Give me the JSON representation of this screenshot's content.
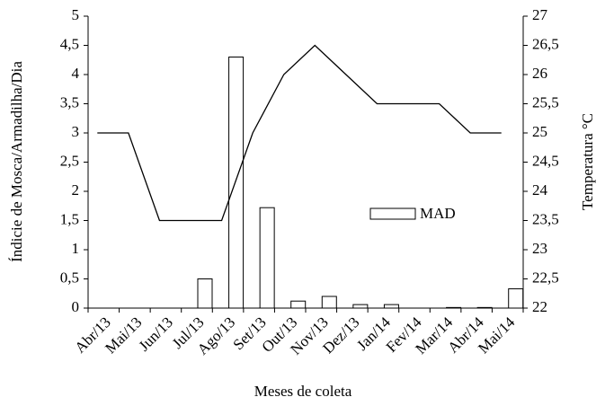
{
  "chart_data": {
    "type": "bar_line",
    "x_label": "Meses de coleta",
    "y_label": "Índicie de Mosca/Armadilha/Dia",
    "y2_label": "Temperatura °C",
    "categories": [
      "Abr/13",
      "Mai/13",
      "Jun/13",
      "Jul/13",
      "Ago/13",
      "Set/13",
      "Out/13",
      "Nov/13",
      "Dez/13",
      "Jan/14",
      "Fev/14",
      "Mar/14",
      "Abr/14",
      "Mai/14"
    ],
    "series": [
      {
        "name": "MAD",
        "type": "bar",
        "color": "#ffffff",
        "values": [
          0,
          0,
          0,
          0.5,
          4.3,
          1.72,
          0.12,
          0.2,
          0.06,
          0.06,
          0,
          0.01,
          0.01,
          0.33
        ]
      },
      {
        "type": "line",
        "axis": "y2",
        "color": "#000000",
        "values": [
          25,
          25,
          23.5,
          23.5,
          23.5,
          25,
          26,
          26.5,
          26,
          25.5,
          25.5,
          25.5,
          25,
          25
        ]
      }
    ],
    "ylim": [
      0,
      5
    ],
    "yticks": [
      0,
      {
        "value": 0.5,
        "label": "0,5"
      },
      1,
      {
        "value": 1.5,
        "label": "1,5"
      },
      2,
      {
        "value": 2.5,
        "label": "2,5"
      },
      3,
      {
        "value": 3.5,
        "label": "3,5"
      },
      4,
      {
        "value": 4.5,
        "label": "4,5"
      },
      5
    ],
    "y2lim": [
      22,
      27
    ],
    "y2ticks": [
      22,
      {
        "value": 22.5,
        "label": "22,5"
      },
      23,
      {
        "value": 23.5,
        "label": "23,5"
      },
      24,
      {
        "value": 24.5,
        "label": "24,5"
      },
      25,
      {
        "value": 25.5,
        "label": "25,5"
      },
      26,
      {
        "value": 26.5,
        "label": "26,5"
      },
      27
    ]
  }
}
